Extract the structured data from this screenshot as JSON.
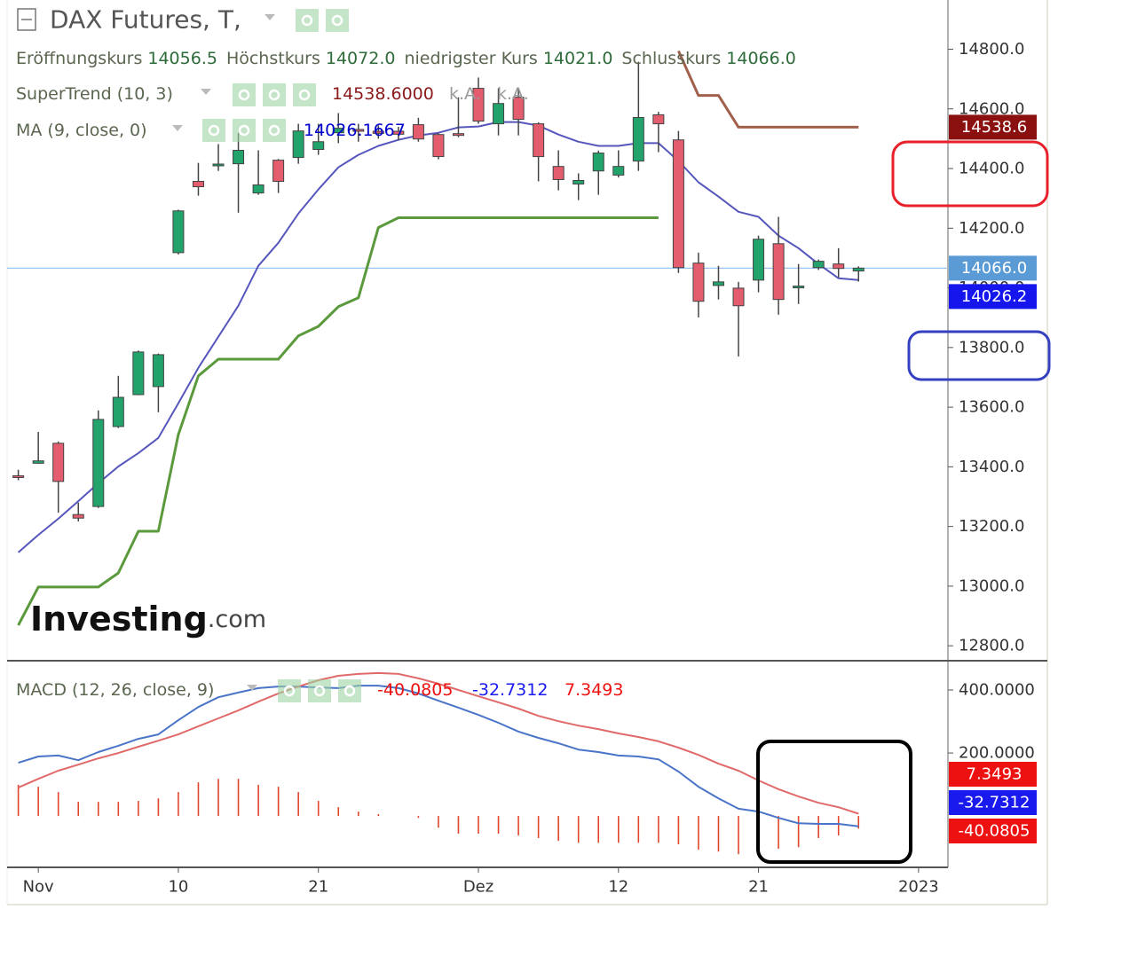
{
  "chart_data": [
    {
      "type": "candlestick",
      "title": "DAX Futures, T,",
      "ohlc_names": [
        "Eröffnungskurs",
        "Höchstkurs",
        "niedrigster Kurs",
        "Schlusskurs"
      ],
      "ohlc_value_labels": [
        "14056.5",
        "14072.0",
        "14021.0",
        "14066.0"
      ],
      "open": [
        13370,
        13412,
        13479,
        13240,
        13267,
        13535,
        13642,
        13669,
        14118,
        14357,
        14410,
        14416,
        14318,
        14428,
        14437,
        14464,
        14520,
        14531,
        14525,
        14525,
        14547,
        14514,
        14517,
        14669,
        14550,
        14639,
        14550,
        14407,
        14348,
        14392,
        14378,
        14425,
        14580,
        14496,
        14083,
        14008,
        13999,
        14026,
        14148,
        14003,
        14068,
        14080,
        14056.5
      ],
      "high": [
        13390,
        13517,
        13485,
        13280,
        13589,
        13705,
        13790,
        13780,
        14262,
        14419,
        14482,
        14520,
        14461,
        14432,
        14550,
        14550,
        14586,
        14550,
        14545,
        14540,
        14570,
        14518,
        14639,
        14705,
        14669,
        14669,
        14555,
        14461,
        14384,
        14460,
        14461,
        14758,
        14590,
        14526,
        14118,
        14074,
        14020,
        14175,
        14238,
        14080,
        14095,
        14133,
        14072
      ],
      "low": [
        13355,
        13410,
        13246,
        13217,
        13262,
        13530,
        13640,
        13583,
        14112,
        14309,
        14392,
        14252,
        14312,
        14318,
        14416,
        14446,
        14485,
        14490,
        14500,
        14495,
        14490,
        14431,
        14505,
        14550,
        14511,
        14511,
        14357,
        14327,
        14294,
        14312,
        14370,
        14392,
        14455,
        14050,
        13901,
        13961,
        13770,
        13985,
        13910,
        13946,
        14060,
        14035,
        14021
      ],
      "close": [
        13365,
        13420,
        13351,
        13228,
        13559,
        13633,
        13785,
        13776,
        14258,
        14339,
        14415,
        14461,
        14345,
        14357,
        14526,
        14490,
        14535,
        14528,
        14518,
        14515,
        14499,
        14440,
        14512,
        14559,
        14618,
        14565,
        14440,
        14363,
        14360,
        14452,
        14407,
        14571,
        14550,
        14068,
        13955,
        14020,
        13940,
        14163,
        13961,
        14006,
        14089,
        14065,
        14066
      ],
      "up_color": "#22a36c",
      "down_color": "#e35d6e",
      "price_line_color": "#9cc2f0",
      "close_axis_color": "#5b9bd5",
      "series": [
        {
          "name": "SuperTrend (10, 3)",
          "type": "supertrend",
          "up_values": [
            12869,
            12997,
            12997,
            12997,
            12997,
            13044,
            13184,
            13184,
            13508,
            13705,
            13761,
            13761,
            13761,
            13761,
            13839,
            13871,
            13937,
            13967,
            14202,
            14235,
            14235,
            14235,
            14235,
            14235,
            14235,
            14235,
            14235,
            14235,
            14235,
            14235,
            14235,
            14235,
            14235,
            null,
            null,
            null,
            null,
            null,
            null,
            null,
            null,
            null,
            null
          ],
          "down_values": [
            null,
            null,
            null,
            null,
            null,
            null,
            null,
            null,
            null,
            null,
            null,
            null,
            null,
            null,
            null,
            null,
            null,
            null,
            null,
            null,
            null,
            null,
            null,
            null,
            null,
            null,
            null,
            null,
            null,
            null,
            null,
            null,
            null,
            14794,
            14645,
            14645,
            14538.6,
            14538.6,
            14538.6,
            14538.6,
            14538.6,
            14538.6,
            14538.6
          ],
          "up_color": "#5b9a3c",
          "down_color": "#a0604c",
          "value_label": "14538.6000",
          "value_color": "#8b1a1a",
          "na_labels": [
            "k.A.",
            "k.A."
          ],
          "axis_label": "14538.6",
          "axis_color": "#8b1111"
        },
        {
          "name": "MA (9, close, 0)",
          "type": "line",
          "color": "#5656bd",
          "values": [
            13113,
            13172,
            13226,
            13285,
            13345,
            13401,
            13446,
            13497,
            13613,
            13732,
            13836,
            13940,
            14074,
            14151,
            14249,
            14330,
            14404,
            14446,
            14476,
            14496,
            14511,
            14520,
            14538,
            14541,
            14556,
            14556,
            14544,
            14514,
            14490,
            14476,
            14476,
            14485,
            14485,
            14425,
            14354,
            14306,
            14255,
            14238,
            14175,
            14133,
            14080,
            14032,
            14026.1667
          ],
          "value_label": "14026.1667",
          "value_color": "#0000cc",
          "axis_label": "14026.2",
          "axis_color": "#1515ee"
        }
      ],
      "ylim": [
        12750,
        14965
      ],
      "yticks": [
        {
          "value": 12800,
          "label": "12800.0"
        },
        {
          "value": 13000,
          "label": "13000.0"
        },
        {
          "value": 13200,
          "label": "13200.0"
        },
        {
          "value": 13400,
          "label": "13400.0"
        },
        {
          "value": 13600,
          "label": "13600.0"
        },
        {
          "value": 13800,
          "label": "13800.0"
        },
        {
          "value": 14000,
          "label": "14000.0"
        },
        {
          "value": 14200,
          "label": "14200.0"
        },
        {
          "value": 14400,
          "label": "14400.0"
        },
        {
          "value": 14600,
          "label": "14600.0"
        },
        {
          "value": 14800,
          "label": "14800.0"
        }
      ],
      "grid": false,
      "watermark": "Investing",
      "watermark_suffix": ".com"
    },
    {
      "type": "macd",
      "title": "MACD (12, 26, close, 9)",
      "series": [
        {
          "name": "histogram",
          "type": "histogram",
          "color": "#e0452a",
          "label_color": "#ee1111",
          "values": [
            99,
            93,
            76,
            45,
            45,
            45,
            48,
            56,
            76,
            107,
            118,
            118,
            99,
            93,
            76,
            48,
            28,
            14,
            6,
            0,
            -6,
            -37,
            -56,
            -56,
            -56,
            -62,
            -70,
            -79,
            -85,
            -85,
            -85,
            -85,
            -85,
            -90,
            -107,
            -113,
            -121,
            -113,
            -104,
            -99,
            -70,
            -62,
            -40.0805
          ],
          "value_label": "-40.0805"
        },
        {
          "name": "MACD",
          "type": "line",
          "color": "#4a74c8",
          "label_color": "#1a1aee",
          "values": [
            169,
            189,
            192,
            177,
            203,
            223,
            245,
            259,
            304,
            346,
            377,
            392,
            406,
            411,
            411,
            408,
            406,
            414,
            414,
            406,
            389,
            366,
            344,
            321,
            296,
            268,
            248,
            231,
            211,
            203,
            192,
            189,
            180,
            141,
            93,
            56,
            23,
            14,
            -6,
            -23,
            -25,
            -25,
            -32.7312
          ],
          "value_label": "-32.7312"
        },
        {
          "name": "signal",
          "type": "line",
          "color": "#e06a6a",
          "label_color": "#ee1111",
          "values": [
            90,
            118,
            144,
            163,
            183,
            200,
            220,
            239,
            259,
            285,
            310,
            335,
            363,
            389,
            411,
            431,
            445,
            451,
            454,
            451,
            437,
            420,
            400,
            380,
            361,
            341,
            318,
            301,
            287,
            276,
            262,
            251,
            237,
            217,
            194,
            166,
            144,
            113,
            85,
            62,
            42,
            28,
            7.3493
          ],
          "value_label": "7.3493"
        }
      ],
      "ylim": [
        -163,
        493
      ],
      "yticks": [
        {
          "value": 200,
          "label": "200.0000"
        },
        {
          "value": 400,
          "label": "400.0000"
        }
      ],
      "xlim": [
        -0.56,
        46.47
      ],
      "xticks": [
        {
          "value": 1,
          "label": "Nov"
        },
        {
          "value": 8,
          "label": "10"
        },
        {
          "value": 15,
          "label": "21"
        },
        {
          "value": 23,
          "label": "Dez"
        },
        {
          "value": 30,
          "label": "12"
        },
        {
          "value": 37,
          "label": "21"
        },
        {
          "value": 45,
          "label": "2023"
        }
      ]
    }
  ]
}
